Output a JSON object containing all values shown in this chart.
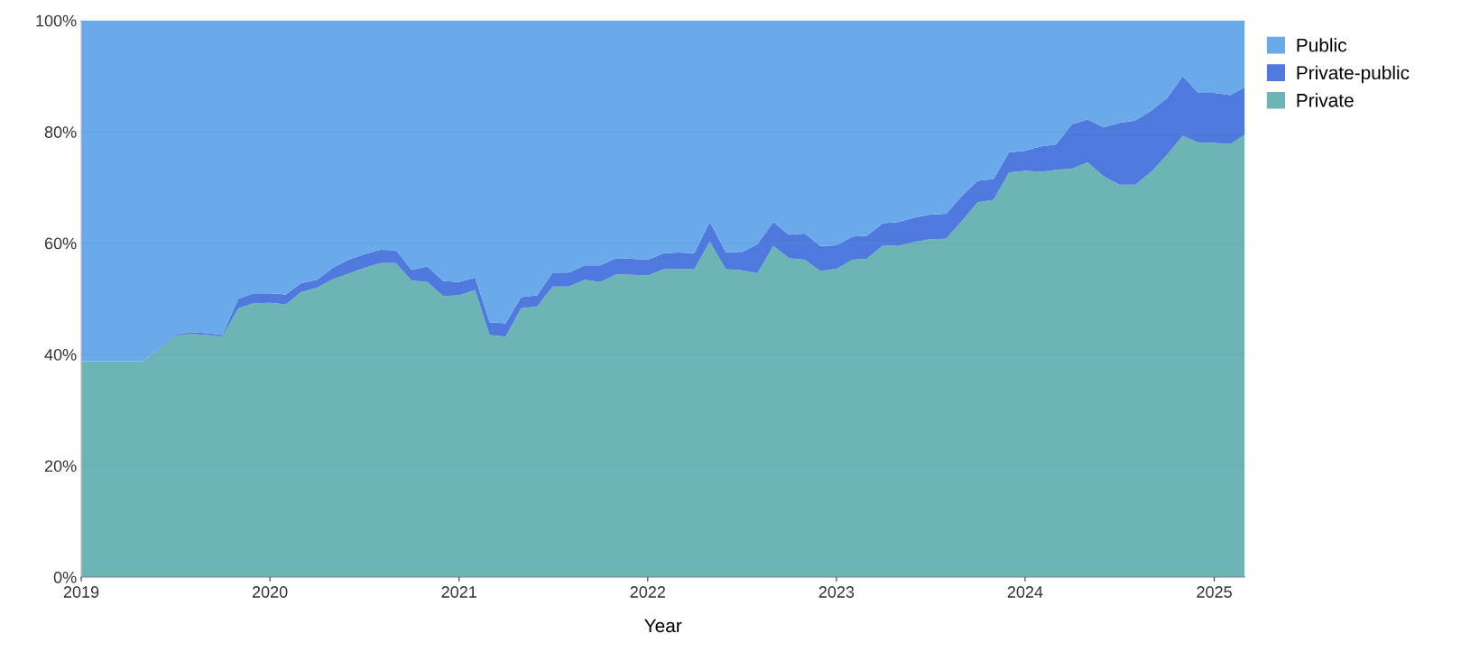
{
  "chart_data": {
    "type": "area",
    "stacked": true,
    "xlabel": "Year",
    "x": [
      "2019-01",
      "2019-02",
      "2019-03",
      "2019-04",
      "2019-05",
      "2019-06",
      "2019-07",
      "2019-08",
      "2019-09",
      "2019-10",
      "2019-11",
      "2019-12",
      "2020-01",
      "2020-02",
      "2020-03",
      "2020-04",
      "2020-05",
      "2020-06",
      "2020-07",
      "2020-08",
      "2020-09",
      "2020-10",
      "2020-11",
      "2020-12",
      "2021-01",
      "2021-02",
      "2021-03",
      "2021-04",
      "2021-05",
      "2021-06",
      "2021-07",
      "2021-08",
      "2021-09",
      "2021-10",
      "2021-11",
      "2021-12",
      "2022-01",
      "2022-02",
      "2022-03",
      "2022-04",
      "2022-05",
      "2022-06",
      "2022-07",
      "2022-08",
      "2022-09",
      "2022-10",
      "2022-11",
      "2022-12",
      "2023-01",
      "2023-02",
      "2023-03",
      "2023-04",
      "2023-05",
      "2023-06",
      "2023-07",
      "2023-08",
      "2023-09",
      "2023-10",
      "2023-11",
      "2023-12",
      "2024-01",
      "2024-02",
      "2024-03",
      "2024-04",
      "2024-05",
      "2024-06",
      "2024-07",
      "2024-08",
      "2024-09",
      "2024-10",
      "2024-11",
      "2024-12",
      "2025-01",
      "2025-02",
      "2025-03"
    ],
    "series": [
      {
        "name": "Private",
        "color": "#6db5b4",
        "values": [
          38.8,
          38.8,
          38.8,
          38.8,
          38.8,
          41,
          43.3,
          43.7,
          43.5,
          43.2,
          48.3,
          49.2,
          49.3,
          49,
          51.2,
          52,
          53.5,
          54.5,
          55.5,
          56.4,
          56.4,
          53.3,
          53,
          50.5,
          50.6,
          51.6,
          43.5,
          43.2,
          48.3,
          48.6,
          52.2,
          52.2,
          53.4,
          53,
          54.4,
          54.3,
          54.2,
          55.3,
          55.3,
          55.3,
          60.3,
          55.3,
          55.1,
          54.6,
          59.5,
          57.3,
          57,
          55,
          55.4,
          57,
          57.2,
          59.6,
          59.5,
          60.2,
          60.7,
          60.8,
          64,
          67.3,
          67.8,
          72.7,
          73,
          72.8,
          73.2,
          73.4,
          74.5,
          72,
          70.5,
          70.5,
          72.8,
          75.8,
          79.3,
          78.1,
          78,
          77.8,
          79.5
        ]
      },
      {
        "name": "Private-public",
        "color": "#5079dd",
        "values": [
          0,
          0,
          0,
          0,
          0,
          0.2,
          0.2,
          0.3,
          0.3,
          0.3,
          1.7,
          1.8,
          1.7,
          1.8,
          1.6,
          1.4,
          2,
          2.5,
          2.5,
          2.4,
          2.3,
          1.9,
          2.8,
          2.7,
          2.4,
          2.2,
          2.3,
          2.4,
          2,
          2,
          2.5,
          2.5,
          2.6,
          3,
          2.9,
          2.9,
          2.8,
          2.9,
          3,
          2.9,
          3.5,
          3.1,
          3.2,
          5.2,
          4.3,
          4.2,
          4.7,
          4.5,
          4.2,
          4.2,
          4.1,
          4,
          4.3,
          4.4,
          4.4,
          4.5,
          4.5,
          3.9,
          3.7,
          3.6,
          3.6,
          4.6,
          4.5,
          8,
          7.7,
          8.8,
          11.1,
          11.5,
          11,
          10.2,
          10.7,
          8.9,
          9,
          8.8,
          8.5
        ]
      },
      {
        "name": "Public",
        "color": "#6aaaeb",
        "values": [
          61.2,
          61.2,
          61.2,
          61.2,
          61.2,
          58.8,
          56.5,
          56,
          56.2,
          56.5,
          50,
          49,
          49,
          49.2,
          47.2,
          46.6,
          44.5,
          43,
          42,
          41.2,
          41.3,
          44.8,
          44.2,
          46.8,
          47,
          46.2,
          54.2,
          54.4,
          49.7,
          49.4,
          45.3,
          45.3,
          44,
          44,
          42.7,
          42.8,
          43,
          41.8,
          41.7,
          41.8,
          36.2,
          41.6,
          41.7,
          40.2,
          36.2,
          38.5,
          38.3,
          40.5,
          40.4,
          38.8,
          38.7,
          36.4,
          36.2,
          35.4,
          34.9,
          34.7,
          31.5,
          28.8,
          28.5,
          23.7,
          23.4,
          22.6,
          22.3,
          18.6,
          17.8,
          19.2,
          18.4,
          18,
          16.2,
          14,
          10,
          13,
          13,
          13.4,
          12
        ]
      }
    ],
    "xlim": [
      "2019-01",
      "2025-03"
    ],
    "xticks": [
      "2019",
      "2020",
      "2021",
      "2022",
      "2023",
      "2024",
      "2025"
    ],
    "ylim": [
      0,
      100
    ],
    "yticks": [
      {
        "value": 0,
        "label": "0%"
      },
      {
        "value": 20,
        "label": "20%"
      },
      {
        "value": 40,
        "label": "40%"
      },
      {
        "value": 60,
        "label": "60%"
      },
      {
        "value": 80,
        "label": "80%"
      },
      {
        "value": 100,
        "label": "100%"
      }
    ],
    "grid": "y",
    "legend": "top right"
  }
}
